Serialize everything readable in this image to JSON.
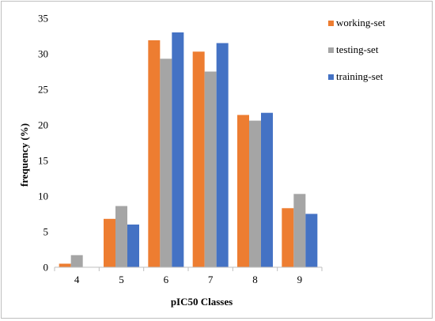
{
  "chart_data": {
    "type": "bar",
    "xlabel": "pIC50 Classes",
    "ylabel": "frequency (%)",
    "ylim": [
      0,
      35
    ],
    "yticks": [
      0,
      5,
      10,
      15,
      20,
      25,
      30,
      35
    ],
    "grid": false,
    "legend_position": "top-right",
    "categories": [
      "4",
      "5",
      "6",
      "7",
      "8",
      "9"
    ],
    "series": [
      {
        "name": "working-set",
        "color": "#ed7d31",
        "values": [
          0.5,
          6.8,
          31.9,
          30.3,
          21.4,
          8.3
        ]
      },
      {
        "name": "testing-set",
        "color": "#a5a5a5",
        "values": [
          1.7,
          8.6,
          29.3,
          27.5,
          20.6,
          10.3
        ]
      },
      {
        "name": "training-set",
        "color": "#4472c4",
        "values": [
          0,
          6.0,
          33.0,
          31.5,
          21.7,
          7.5
        ]
      }
    ]
  }
}
